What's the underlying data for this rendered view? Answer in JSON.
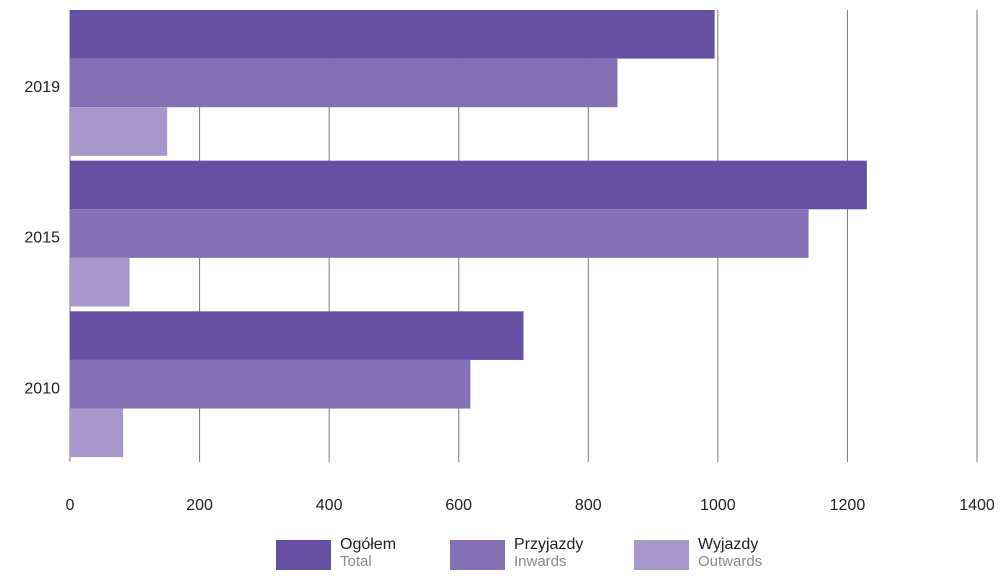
{
  "chart_data": {
    "type": "bar",
    "orientation": "horizontal",
    "categories": [
      "2019",
      "2015",
      "2010"
    ],
    "series": [
      {
        "name": "Ogółem",
        "name_en": "Total",
        "color": "#6550a3",
        "values": [
          995,
          1230,
          700
        ]
      },
      {
        "name": "Przyjazdy",
        "name_en": "Inwards",
        "color": "#8471b5",
        "values": [
          845,
          1140,
          618
        ]
      },
      {
        "name": "Wyjazdy",
        "name_en": "Outwards",
        "color": "#a798cb",
        "values": [
          150,
          92,
          82
        ]
      }
    ],
    "x_ticks": [
      "0",
      "200",
      "400",
      "600",
      "800",
      "1000",
      "1200",
      "1400"
    ],
    "xlim": [
      0,
      1400
    ],
    "grid": "vertical",
    "legend_position": "bottom"
  }
}
